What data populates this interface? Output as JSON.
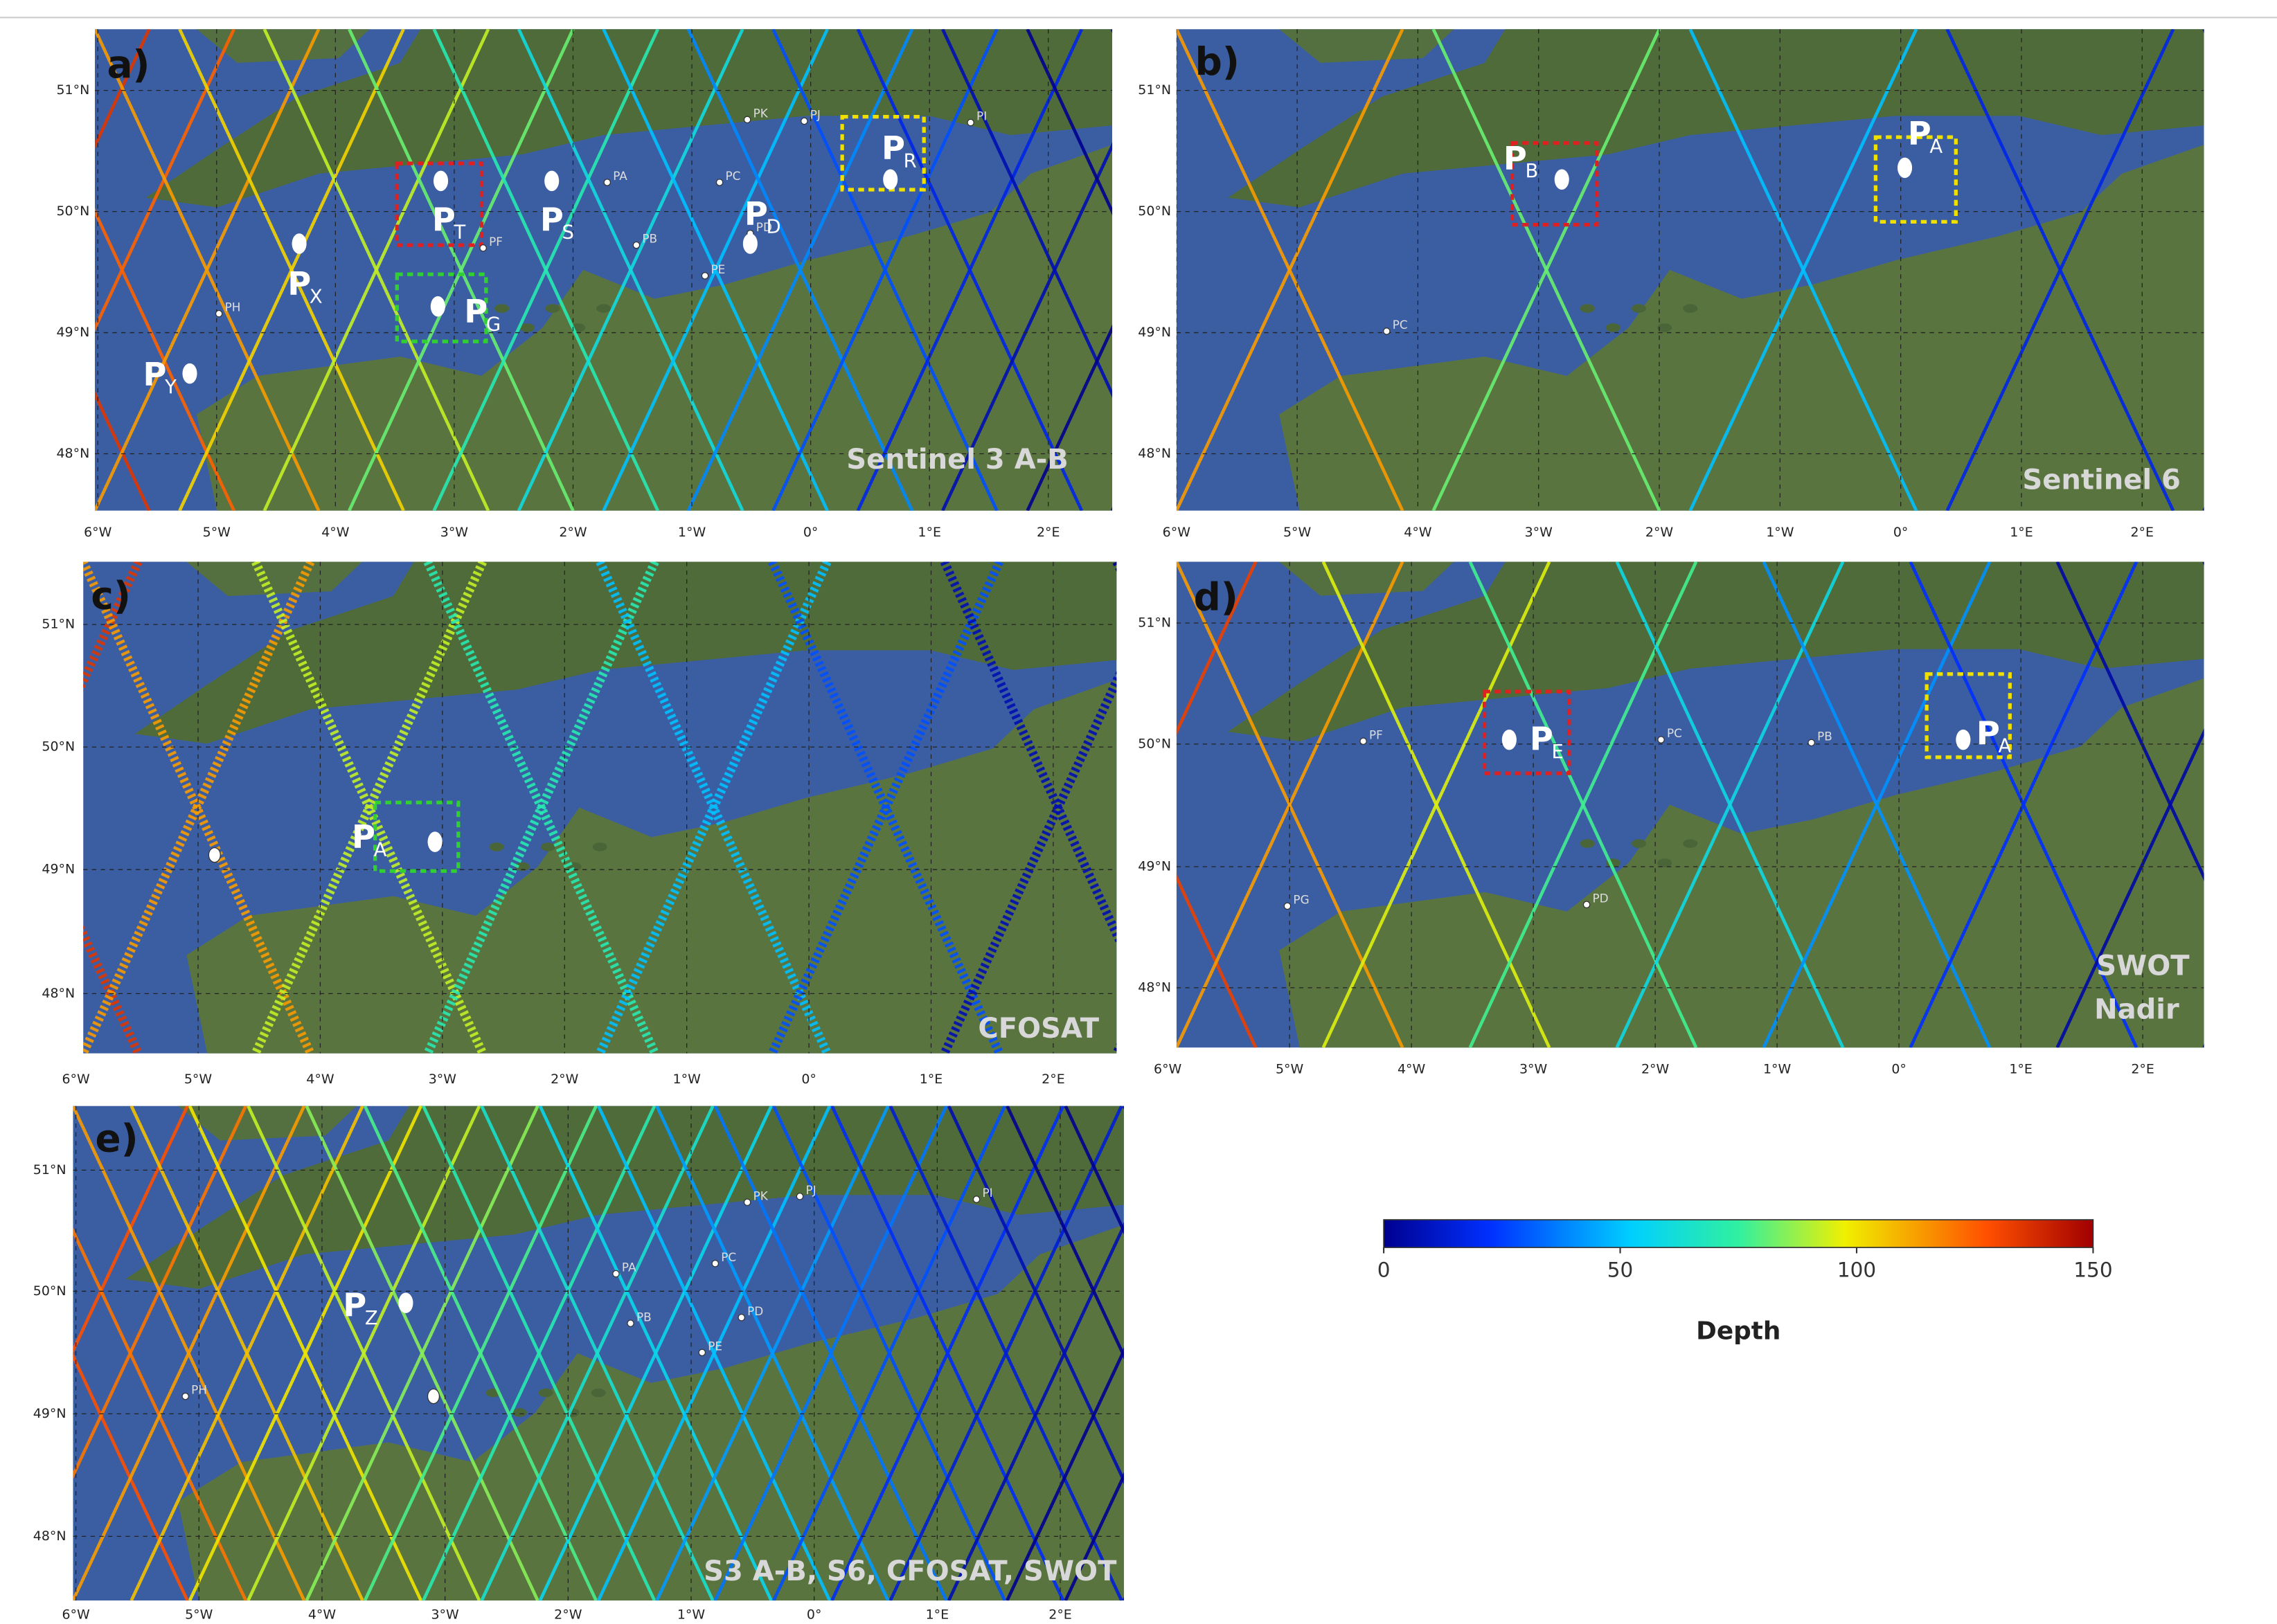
{
  "graticule": {
    "lat_labels": [
      "51°N",
      "50°N",
      "49°N",
      "48°N"
    ],
    "lon_labels": [
      "6°W",
      "5°W",
      "4°W",
      "3°W",
      "2°W",
      "1°W",
      "0°",
      "1°E",
      "2°E"
    ]
  },
  "panels": [
    {
      "label": "a)",
      "name": [
        "Sentinel 3 A-B"
      ],
      "points": [
        {
          "main": "P",
          "sub": "T"
        },
        {
          "main": "P",
          "sub": "S"
        },
        {
          "main": "P",
          "sub": "D"
        },
        {
          "main": "P",
          "sub": "R"
        },
        {
          "main": "P",
          "sub": "X"
        },
        {
          "main": "P",
          "sub": "G"
        },
        {
          "main": "P",
          "sub": "Y"
        }
      ],
      "stations": [
        "PK",
        "PJ",
        "PI",
        "PA",
        "PC",
        "PB",
        "PE",
        "PD",
        "PF",
        "PH"
      ]
    },
    {
      "label": "b)",
      "name": [
        "Sentinel 6"
      ],
      "points": [
        {
          "main": "P",
          "sub": "B"
        },
        {
          "main": "P",
          "sub": "A"
        }
      ],
      "stations": [
        "PC"
      ]
    },
    {
      "label": "c)",
      "name": [
        "CFOSAT"
      ],
      "points": [
        {
          "main": "P",
          "sub": "A"
        }
      ],
      "stations": []
    },
    {
      "label": "d)",
      "name": [
        "SWOT",
        "Nadir"
      ],
      "points": [
        {
          "main": "P",
          "sub": "E"
        },
        {
          "main": "P",
          "sub": "A"
        }
      ],
      "stations": [
        "PF",
        "PC",
        "PB",
        "PG",
        "PD"
      ]
    },
    {
      "label": "e)",
      "name": [
        "S3 A-B, S6, CFOSAT, SWOT"
      ],
      "points": [
        {
          "main": "P",
          "sub": "Z"
        }
      ],
      "stations": [
        "PK",
        "PJ",
        "PI",
        "PC",
        "PA",
        "PB",
        "PD",
        "PE",
        "PH"
      ]
    }
  ],
  "colorbar": {
    "title": "Depth",
    "lim": [
      0,
      150
    ],
    "ticks": [
      0,
      50,
      100,
      150
    ]
  }
}
